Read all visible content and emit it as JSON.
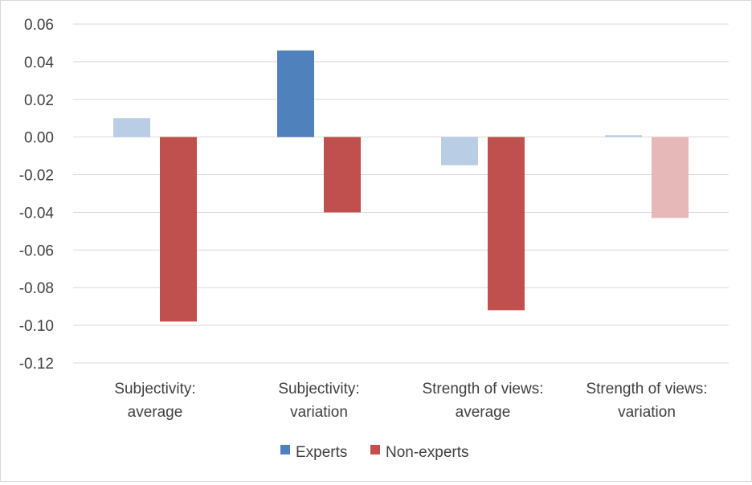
{
  "chart_data": {
    "type": "bar",
    "title": "",
    "xlabel": "",
    "ylabel": "",
    "ylim": [
      -0.12,
      0.06
    ],
    "yticks": [
      "0.06",
      "0.04",
      "0.02",
      "0.00",
      "-0.02",
      "-0.04",
      "-0.06",
      "-0.08",
      "-0.10",
      "-0.12"
    ],
    "ytick_values": [
      0.06,
      0.04,
      0.02,
      0.0,
      -0.02,
      -0.04,
      -0.06,
      -0.08,
      -0.1,
      -0.12
    ],
    "grid": true,
    "legend_position": "bottom",
    "categories": [
      [
        "Subjectivity:",
        "average"
      ],
      [
        "Subjectivity:",
        "variation"
      ],
      [
        "Strength of views:",
        "average"
      ],
      [
        "Strength of views:",
        "variation"
      ]
    ],
    "series": [
      {
        "name": "Experts",
        "color": "#4f81bd",
        "values": [
          0.01,
          0.046,
          -0.015,
          0.001
        ],
        "bar_colors": [
          "#b9cde5",
          "#4f81bd",
          "#b9cde5",
          "#b9cde5"
        ]
      },
      {
        "name": "Non-experts",
        "color": "#c0504d",
        "values": [
          -0.098,
          -0.04,
          -0.092,
          -0.043
        ],
        "bar_colors": [
          "#c0504d",
          "#c0504d",
          "#c0504d",
          "#e6b9b8"
        ]
      }
    ]
  }
}
